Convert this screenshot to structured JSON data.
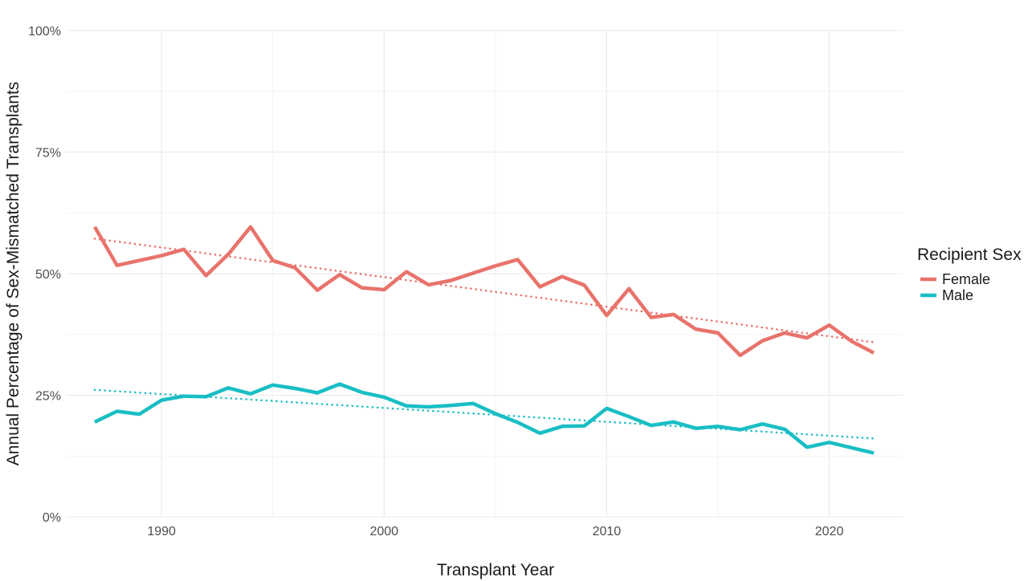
{
  "chart_data": {
    "type": "line",
    "title": "",
    "xlabel": "Transplant Year",
    "ylabel": "Annual Percentage of Sex-Mismatched Transplants",
    "xlim": [
      1985.7,
      2023.3
    ],
    "ylim": [
      0,
      100
    ],
    "x_ticks": [
      1990,
      2000,
      2010,
      2020
    ],
    "x_tick_labels": [
      "1990",
      "2000",
      "2010",
      "2020"
    ],
    "y_ticks": [
      0,
      25,
      50,
      75,
      100
    ],
    "y_tick_labels": [
      "0%",
      "25%",
      "50%",
      "75%",
      "100%"
    ],
    "grid": true,
    "legend": {
      "title": "Recipient Sex",
      "position": "right"
    },
    "x": [
      1987,
      1988,
      1989,
      1990,
      1991,
      1992,
      1993,
      1994,
      1995,
      1996,
      1997,
      1998,
      1999,
      2000,
      2001,
      2002,
      2003,
      2004,
      2005,
      2006,
      2007,
      2008,
      2009,
      2010,
      2011,
      2012,
      2013,
      2014,
      2015,
      2016,
      2017,
      2018,
      2019,
      2020,
      2021,
      2022
    ],
    "series": [
      {
        "name": "Female",
        "color": "#E8736B",
        "values": [
          59.6,
          51.7,
          52.7,
          53.7,
          55.0,
          49.6,
          54.0,
          59.6,
          52.7,
          51.2,
          46.6,
          49.8,
          47.1,
          46.7,
          50.4,
          47.7,
          48.6,
          50.1,
          51.6,
          52.9,
          47.3,
          49.4,
          47.6,
          41.4,
          46.9,
          41.0,
          41.6,
          38.6,
          37.8,
          33.2,
          36.2,
          37.8,
          36.8,
          39.4,
          36.1,
          33.7
        ],
        "trend": [
          57.2,
          35.9
        ]
      },
      {
        "name": "Male",
        "color": "#19BEC4",
        "values": [
          19.5,
          21.7,
          21.1,
          24.0,
          24.8,
          24.7,
          26.5,
          25.3,
          27.1,
          26.4,
          25.5,
          27.3,
          25.6,
          24.6,
          22.8,
          22.6,
          22.9,
          23.3,
          21.2,
          19.4,
          17.2,
          18.6,
          18.7,
          22.3,
          20.6,
          18.8,
          19.5,
          18.2,
          18.6,
          17.9,
          19.1,
          18.0,
          14.3,
          15.3,
          14.2,
          13.1
        ],
        "trend": [
          26.1,
          16.1
        ]
      }
    ]
  }
}
